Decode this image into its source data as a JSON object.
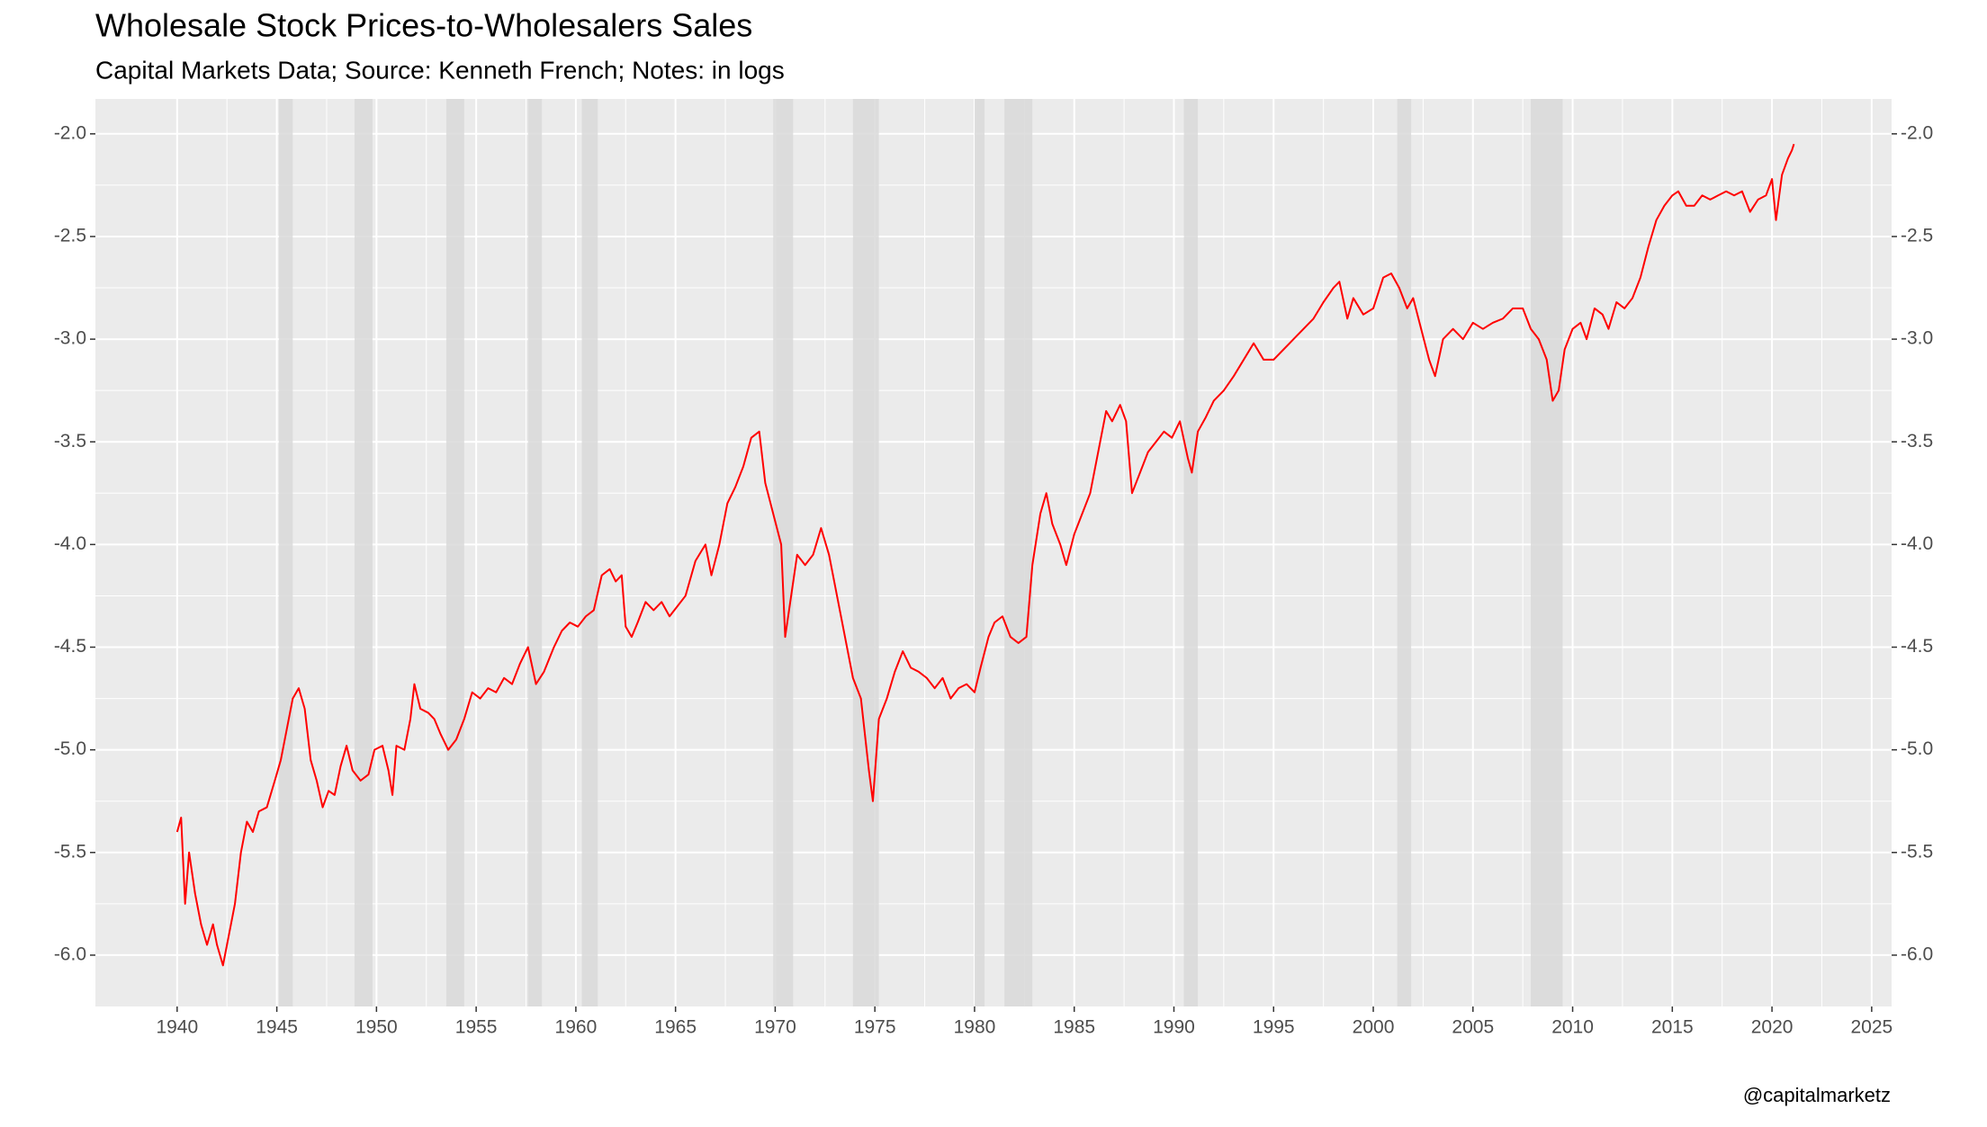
{
  "chart_data": {
    "type": "line",
    "title": "Wholesale Stock Prices-to-Wholesalers Sales",
    "subtitle": "Capital Markets Data; Source: Kenneth French; Notes: in logs",
    "caption": "@capitalmarketz",
    "color": "#ff0000",
    "recession_color": "#d9d9d9",
    "grid": true,
    "recessions": [
      [
        1945.1,
        1945.8
      ],
      [
        1948.9,
        1949.8
      ],
      [
        1953.5,
        1954.4
      ],
      [
        1957.6,
        1958.3
      ],
      [
        1960.3,
        1961.1
      ],
      [
        1969.9,
        1970.9
      ],
      [
        1973.9,
        1975.2
      ],
      [
        1980.0,
        1980.5
      ],
      [
        1981.5,
        1982.9
      ],
      [
        1990.5,
        1991.2
      ],
      [
        2001.2,
        2001.9
      ],
      [
        2007.9,
        2009.5
      ]
    ],
    "x": [
      1940.0,
      1940.2,
      1940.4,
      1940.6,
      1940.9,
      1941.2,
      1941.5,
      1941.8,
      1942.0,
      1942.3,
      1942.6,
      1942.9,
      1943.2,
      1943.5,
      1943.8,
      1944.1,
      1944.5,
      1944.9,
      1945.2,
      1945.5,
      1945.8,
      1946.1,
      1946.4,
      1946.7,
      1947.0,
      1947.3,
      1947.6,
      1947.9,
      1948.2,
      1948.5,
      1948.8,
      1949.2,
      1949.6,
      1949.9,
      1950.3,
      1950.6,
      1950.8,
      1951.0,
      1951.4,
      1951.7,
      1951.9,
      1952.2,
      1952.6,
      1952.9,
      1953.2,
      1953.6,
      1954.0,
      1954.4,
      1954.8,
      1955.2,
      1955.6,
      1956.0,
      1956.4,
      1956.8,
      1957.2,
      1957.6,
      1958.0,
      1958.4,
      1958.9,
      1959.3,
      1959.7,
      1960.1,
      1960.5,
      1960.9,
      1961.3,
      1961.7,
      1962.0,
      1962.3,
      1962.5,
      1962.8,
      1963.1,
      1963.5,
      1963.9,
      1964.3,
      1964.7,
      1965.1,
      1965.5,
      1966.0,
      1966.5,
      1966.8,
      1967.2,
      1967.6,
      1968.0,
      1968.4,
      1968.8,
      1969.2,
      1969.5,
      1969.9,
      1970.3,
      1970.5,
      1970.8,
      1971.1,
      1971.5,
      1971.9,
      1972.3,
      1972.7,
      1973.1,
      1973.5,
      1973.9,
      1974.3,
      1974.7,
      1974.9,
      1975.2,
      1975.6,
      1976.0,
      1976.4,
      1976.8,
      1977.2,
      1977.6,
      1978.0,
      1978.4,
      1978.8,
      1979.2,
      1979.6,
      1980.0,
      1980.3,
      1980.7,
      1981.0,
      1981.4,
      1981.8,
      1982.2,
      1982.6,
      1982.9,
      1983.3,
      1983.6,
      1983.9,
      1984.3,
      1984.6,
      1985.0,
      1985.4,
      1985.8,
      1986.2,
      1986.6,
      1986.9,
      1987.3,
      1987.6,
      1987.9,
      1988.3,
      1988.7,
      1989.1,
      1989.5,
      1989.9,
      1990.3,
      1990.7,
      1990.9,
      1991.2,
      1991.6,
      1992.0,
      1992.5,
      1993.0,
      1993.5,
      1994.0,
      1994.5,
      1995.0,
      1995.5,
      1996.0,
      1996.5,
      1997.0,
      1997.5,
      1998.0,
      1998.3,
      1998.7,
      1999.0,
      1999.5,
      2000.0,
      2000.5,
      2000.9,
      2001.3,
      2001.7,
      2002.0,
      2002.4,
      2002.8,
      2003.1,
      2003.5,
      2004.0,
      2004.5,
      2005.0,
      2005.5,
      2006.0,
      2006.5,
      2007.0,
      2007.5,
      2007.9,
      2008.3,
      2008.7,
      2009.0,
      2009.3,
      2009.6,
      2010.0,
      2010.4,
      2010.7,
      2011.1,
      2011.5,
      2011.8,
      2012.2,
      2012.6,
      2013.0,
      2013.4,
      2013.8,
      2014.2,
      2014.6,
      2015.0,
      2015.3,
      2015.7,
      2016.1,
      2016.5,
      2016.9,
      2017.3,
      2017.7,
      2018.1,
      2018.5,
      2018.9,
      2019.3,
      2019.7,
      2020.0,
      2020.2,
      2020.5,
      2020.8,
      2021.0,
      2021.1
    ],
    "values": [
      -5.4,
      -5.33,
      -5.75,
      -5.5,
      -5.7,
      -5.85,
      -5.95,
      -5.85,
      -5.95,
      -6.05,
      -5.9,
      -5.75,
      -5.5,
      -5.35,
      -5.4,
      -5.3,
      -5.28,
      -5.15,
      -5.05,
      -4.9,
      -4.75,
      -4.7,
      -4.8,
      -5.05,
      -5.15,
      -5.28,
      -5.2,
      -5.22,
      -5.08,
      -4.98,
      -5.1,
      -5.15,
      -5.12,
      -5.0,
      -4.98,
      -5.1,
      -5.22,
      -4.98,
      -5.0,
      -4.85,
      -4.68,
      -4.8,
      -4.82,
      -4.85,
      -4.92,
      -5.0,
      -4.95,
      -4.85,
      -4.72,
      -4.75,
      -4.7,
      -4.72,
      -4.65,
      -4.68,
      -4.58,
      -4.5,
      -4.68,
      -4.62,
      -4.5,
      -4.42,
      -4.38,
      -4.4,
      -4.35,
      -4.32,
      -4.15,
      -4.12,
      -4.18,
      -4.15,
      -4.4,
      -4.45,
      -4.38,
      -4.28,
      -4.32,
      -4.28,
      -4.35,
      -4.3,
      -4.25,
      -4.08,
      -4.0,
      -4.15,
      -4.0,
      -3.8,
      -3.72,
      -3.62,
      -3.48,
      -3.45,
      -3.7,
      -3.85,
      -4.0,
      -4.45,
      -4.25,
      -4.05,
      -4.1,
      -4.05,
      -3.92,
      -4.05,
      -4.25,
      -4.45,
      -4.65,
      -4.75,
      -5.1,
      -5.25,
      -4.85,
      -4.75,
      -4.62,
      -4.52,
      -4.6,
      -4.62,
      -4.65,
      -4.7,
      -4.65,
      -4.75,
      -4.7,
      -4.68,
      -4.72,
      -4.6,
      -4.45,
      -4.38,
      -4.35,
      -4.45,
      -4.48,
      -4.45,
      -4.1,
      -3.85,
      -3.75,
      -3.9,
      -4.0,
      -4.1,
      -3.95,
      -3.85,
      -3.75,
      -3.55,
      -3.35,
      -3.4,
      -3.32,
      -3.4,
      -3.75,
      -3.65,
      -3.55,
      -3.5,
      -3.45,
      -3.48,
      -3.4,
      -3.58,
      -3.65,
      -3.45,
      -3.38,
      -3.3,
      -3.25,
      -3.18,
      -3.1,
      -3.02,
      -3.1,
      -3.1,
      -3.05,
      -3.0,
      -2.95,
      -2.9,
      -2.82,
      -2.75,
      -2.72,
      -2.9,
      -2.8,
      -2.88,
      -2.85,
      -2.7,
      -2.68,
      -2.75,
      -2.85,
      -2.8,
      -2.95,
      -3.1,
      -3.18,
      -3.0,
      -2.95,
      -3.0,
      -2.92,
      -2.95,
      -2.92,
      -2.9,
      -2.85,
      -2.85,
      -2.95,
      -3.0,
      -3.1,
      -3.3,
      -3.25,
      -3.05,
      -2.95,
      -2.92,
      -3.0,
      -2.85,
      -2.88,
      -2.95,
      -2.82,
      -2.85,
      -2.8,
      -2.7,
      -2.55,
      -2.42,
      -2.35,
      -2.3,
      -2.28,
      -2.35,
      -2.35,
      -2.3,
      -2.32,
      -2.3,
      -2.28,
      -2.3,
      -2.28,
      -2.38,
      -2.32,
      -2.3,
      -2.22,
      -2.42,
      -2.2,
      -2.12,
      -2.08,
      -2.05
    ],
    "xlim": [
      1935.9,
      2026.0
    ],
    "xticks": [
      1940,
      1945,
      1950,
      1955,
      1960,
      1965,
      1970,
      1975,
      1980,
      1985,
      1990,
      1995,
      2000,
      2005,
      2010,
      2015,
      2020,
      2025
    ],
    "ylim": [
      -6.25,
      -1.83
    ],
    "yticks": [
      {
        "value": -2,
        "label": "-2.0"
      },
      {
        "value": -2.5,
        "label": "-2.5"
      },
      {
        "value": -3,
        "label": "-3.0"
      },
      {
        "value": -3.5,
        "label": "-3.5"
      },
      {
        "value": -4,
        "label": "-4.0"
      },
      {
        "value": -4.5,
        "label": "-4.5"
      },
      {
        "value": -5,
        "label": "-5.0"
      },
      {
        "value": -5.5,
        "label": "-5.5"
      },
      {
        "value": -6,
        "label": "-6.0"
      }
    ],
    "y2lim": [
      -6.25,
      -1.83
    ],
    "y2ticks": [
      {
        "value": -2,
        "label": "-2.0"
      },
      {
        "value": -2.5,
        "label": "-2.5"
      },
      {
        "value": -3,
        "label": "-3.0"
      },
      {
        "value": -3.5,
        "label": "-3.5"
      },
      {
        "value": -4,
        "label": "-4.0"
      },
      {
        "value": -4.5,
        "label": "-4.5"
      },
      {
        "value": -5,
        "label": "-5.0"
      },
      {
        "value": -5.5,
        "label": "-5.5"
      },
      {
        "value": -6,
        "label": "-6.0"
      }
    ]
  }
}
